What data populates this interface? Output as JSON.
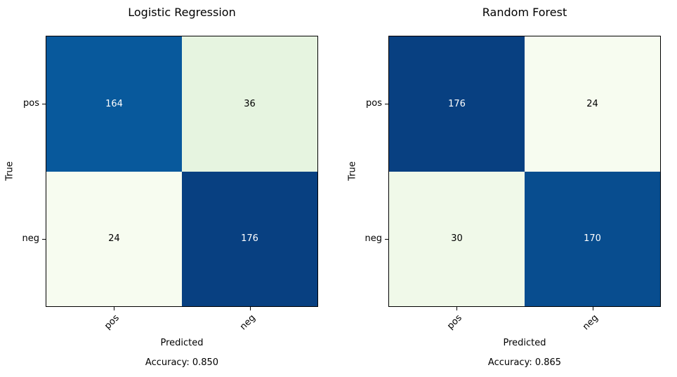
{
  "figure": {
    "background": "#ffffff",
    "text_color": "#000000"
  },
  "chart_data": [
    {
      "type": "heatmap",
      "title": "Logistic Regression",
      "xlabel": "Predicted",
      "ylabel": "True",
      "x_ticklabels": [
        "pos",
        "neg"
      ],
      "y_ticklabels": [
        "pos",
        "neg"
      ],
      "matrix": [
        [
          164,
          36
        ],
        [
          24,
          176
        ]
      ],
      "accuracy_text": "Accuracy: 0.850",
      "colormap": "GnBu",
      "cell_colors": [
        [
          "#08599c",
          "#e6f4e0"
        ],
        [
          "#f7fcf0",
          "#084081"
        ]
      ],
      "cell_text_colors": [
        [
          "#ffffff",
          "#000000"
        ],
        [
          "#000000",
          "#ffffff"
        ]
      ],
      "legend": "none",
      "grid": false
    },
    {
      "type": "heatmap",
      "title": "Random Forest",
      "xlabel": "Predicted",
      "ylabel": "True",
      "x_ticklabels": [
        "pos",
        "neg"
      ],
      "y_ticklabels": [
        "pos",
        "neg"
      ],
      "matrix": [
        [
          176,
          24
        ],
        [
          30,
          170
        ]
      ],
      "accuracy_text": "Accuracy: 0.865",
      "colormap": "GnBu",
      "cell_colors": [
        [
          "#084081",
          "#f7fcf0"
        ],
        [
          "#f0f9e9",
          "#084d8f"
        ]
      ],
      "cell_text_colors": [
        [
          "#ffffff",
          "#000000"
        ],
        [
          "#000000",
          "#ffffff"
        ]
      ],
      "legend": "none",
      "grid": false
    }
  ]
}
